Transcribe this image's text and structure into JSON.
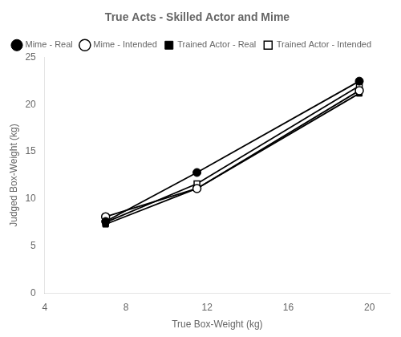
{
  "chart_data": {
    "type": "line",
    "title": "True Acts - Skilled Actor and Mime",
    "xlabel": "True Box-Weight (kg)",
    "ylabel": "Judged Box-Weight (kg)",
    "x": [
      7,
      11.5,
      19.5
    ],
    "series": [
      {
        "name": "Mime - Real",
        "color": "#000000",
        "marker": "circle",
        "line_style": "solid",
        "values": [
          7.6,
          12.8,
          22.5
        ]
      },
      {
        "name": "Mime - Intended",
        "color": "#000000",
        "marker": "circle_open",
        "line_style": "solid",
        "values": [
          8.1,
          11.1,
          21.5
        ]
      },
      {
        "name": "Trained Actor - Real",
        "color": "#000000",
        "marker": "square",
        "line_style": "solid",
        "values": [
          7.3,
          11.1,
          21.2
        ]
      },
      {
        "name": "Trained Actor - Intended",
        "color": "#000000",
        "marker": "square_open",
        "line_style": "solid",
        "values": [
          7.5,
          11.6,
          22.0
        ]
      }
    ],
    "xlim": [
      4,
      21
    ],
    "ylim": [
      0,
      25
    ],
    "xticks": [
      4,
      8,
      12,
      16,
      20
    ],
    "yticks": [
      0,
      5,
      10,
      15,
      20,
      25
    ],
    "grid": false,
    "legend": "upper left"
  }
}
